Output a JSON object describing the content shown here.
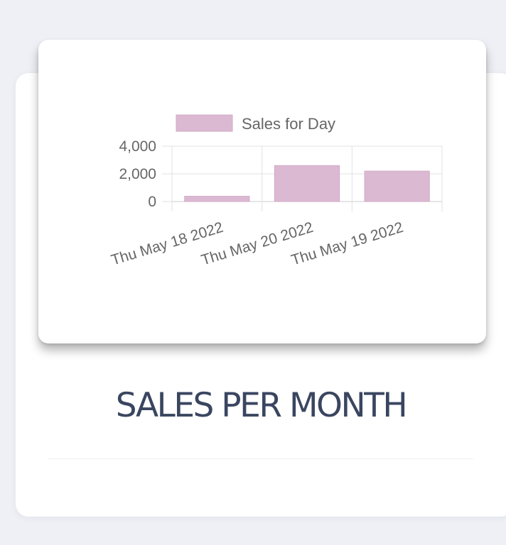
{
  "card": {
    "title": "SALES PER MONTH"
  },
  "colors": {
    "bar_fill": "#dcb9d2",
    "bar_stroke": "#d2a9c6",
    "title": "#3a4660",
    "background": "#eef0f5"
  },
  "chart_data": {
    "type": "bar",
    "categories": [
      "Thu May 18 2022",
      "Thu May 20 2022",
      "Thu May 19 2022"
    ],
    "series": [
      {
        "name": "Sales for Day",
        "values": [
          380,
          2600,
          2200
        ]
      }
    ],
    "yticks": [
      0,
      2000,
      4000
    ],
    "ytick_labels": [
      "0",
      "2,000",
      "4,000"
    ],
    "ylim": [
      0,
      4000
    ],
    "legend_position": "top",
    "grid": true,
    "title": "",
    "xlabel": "",
    "ylabel": ""
  }
}
